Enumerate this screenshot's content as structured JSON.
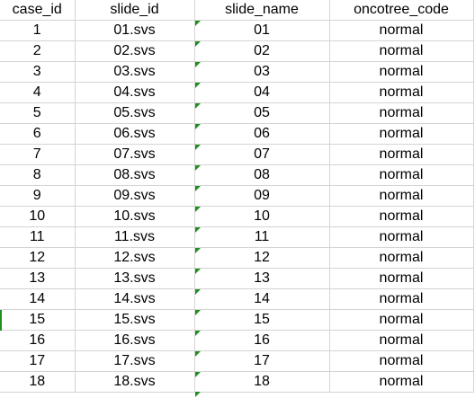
{
  "sheet": {
    "headers": [
      "case_id",
      "slide_id",
      "slide_name",
      "oncotree_code"
    ],
    "rows": [
      [
        "1",
        "01.svs",
        "01",
        "normal"
      ],
      [
        "2",
        "02.svs",
        "02",
        "normal"
      ],
      [
        "3",
        "03.svs",
        "03",
        "normal"
      ],
      [
        "4",
        "04.svs",
        "04",
        "normal"
      ],
      [
        "5",
        "05.svs",
        "05",
        "normal"
      ],
      [
        "6",
        "06.svs",
        "06",
        "normal"
      ],
      [
        "7",
        "07.svs",
        "07",
        "normal"
      ],
      [
        "8",
        "08.svs",
        "08",
        "normal"
      ],
      [
        "9",
        "09.svs",
        "09",
        "normal"
      ],
      [
        "10",
        "10.svs",
        "10",
        "normal"
      ],
      [
        "11",
        "11.svs",
        "11",
        "normal"
      ],
      [
        "12",
        "12.svs",
        "12",
        "normal"
      ],
      [
        "13",
        "13.svs",
        "13",
        "normal"
      ],
      [
        "14",
        "14.svs",
        "14",
        "normal"
      ],
      [
        "15",
        "15.svs",
        "15",
        "normal"
      ],
      [
        "16",
        "16.svs",
        "16",
        "normal"
      ],
      [
        "17",
        "17.svs",
        "17",
        "normal"
      ],
      [
        "18",
        "18.svs",
        "18",
        "normal"
      ]
    ],
    "flag_color": "#1f8f1f",
    "gridline_color": "#d4d4d4"
  }
}
